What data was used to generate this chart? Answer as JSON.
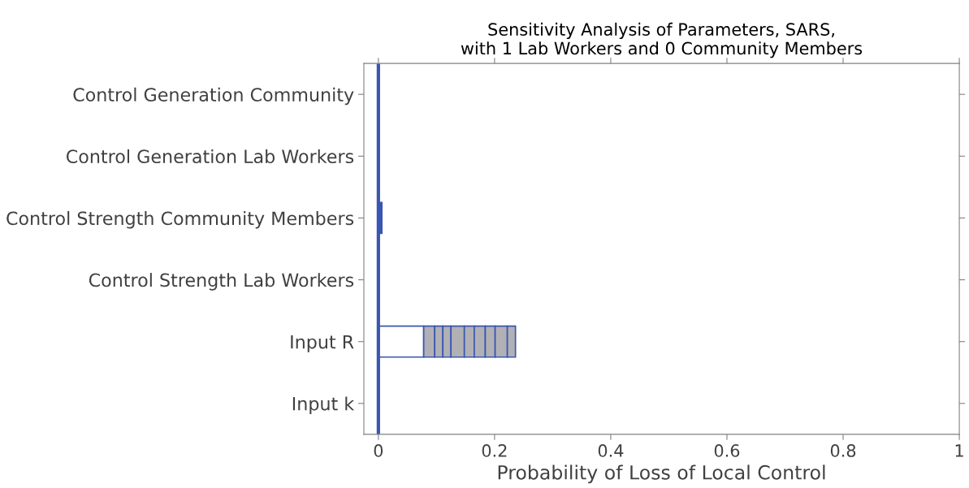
{
  "chart_data": {
    "type": "bar",
    "orientation": "horizontal",
    "stacked": true,
    "title": "Sensitivity Analysis of Parameters, SARS,\nwith 1 Lab Workers and 0 Community Members",
    "xlabel": "Probability of Loss of Local Control",
    "categories": [
      "Control Generation Community",
      "Control Generation Lab Workers",
      "Control Strength Community Members",
      "Control Strength Lab Workers",
      "Input R",
      "Input k"
    ],
    "series": [
      {
        "colors": [
          "#ffffff",
          "#ffffff",
          "#3a56b0",
          "#ffffff",
          "#ffffff",
          "#ffffff"
        ],
        "values": [
          0,
          0,
          0.006,
          0,
          0.078,
          0
        ]
      },
      {
        "color": "#b1b1b5",
        "values": [
          0,
          0,
          0,
          0,
          0.019,
          0
        ]
      },
      {
        "color": "#b1b1b5",
        "values": [
          0,
          0,
          0,
          0,
          0.014,
          0
        ]
      },
      {
        "color": "#b1b1b5",
        "values": [
          0,
          0,
          0,
          0,
          0.014,
          0
        ]
      },
      {
        "color": "#b1b1b5",
        "values": [
          0,
          0,
          0,
          0,
          0.023,
          0
        ]
      },
      {
        "color": "#b1b1b5",
        "values": [
          0,
          0,
          0,
          0,
          0.017,
          0
        ]
      },
      {
        "color": "#b1b1b5",
        "values": [
          0,
          0,
          0,
          0,
          0.019,
          0
        ]
      },
      {
        "color": "#b1b1b5",
        "values": [
          0,
          0,
          0,
          0,
          0.017,
          0
        ]
      },
      {
        "color": "#b1b1b5",
        "values": [
          0,
          0,
          0,
          0,
          0.021,
          0
        ]
      },
      {
        "color": "#b1b1b5",
        "values": [
          0,
          0,
          0,
          0,
          0.014,
          0
        ]
      }
    ],
    "xlim": [
      -0.025,
      1.0
    ],
    "xticks": [
      0,
      0.2,
      0.4,
      0.6,
      0.8,
      1
    ],
    "ref_lines": [
      {
        "axis": "x",
        "value": 0,
        "color": "#3a56b0"
      }
    ],
    "grid": false
  }
}
